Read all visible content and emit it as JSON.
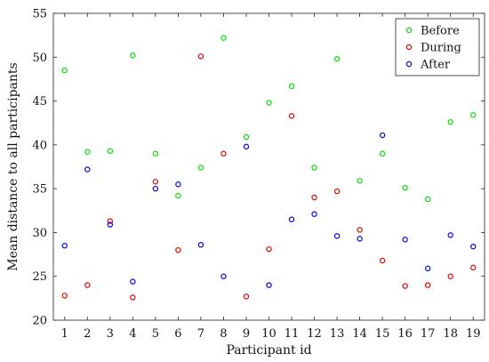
{
  "chart_data": {
    "type": "scatter",
    "title": "",
    "xlabel": "Participant id",
    "ylabel": "Mean distance to all participants",
    "x": [
      1,
      2,
      3,
      4,
      5,
      6,
      7,
      8,
      9,
      10,
      11,
      12,
      13,
      14,
      15,
      16,
      17,
      18,
      19
    ],
    "xlim": [
      0.5,
      19.5
    ],
    "ylim": [
      20,
      55
    ],
    "xticks": [
      1,
      2,
      3,
      4,
      5,
      6,
      7,
      8,
      9,
      10,
      11,
      12,
      13,
      14,
      15,
      16,
      17,
      18,
      19
    ],
    "yticks": [
      20,
      25,
      30,
      35,
      40,
      45,
      50,
      55
    ],
    "grid": false,
    "legend_position": "top-right",
    "marker": "open-circle",
    "series": [
      {
        "name": "Before",
        "color": "#00dd00",
        "values": [
          48.5,
          39.2,
          39.3,
          50.2,
          39.0,
          34.2,
          37.4,
          52.2,
          40.9,
          44.8,
          46.7,
          37.4,
          49.8,
          35.9,
          39.0,
          35.1,
          33.8,
          42.6,
          43.4
        ]
      },
      {
        "name": "During",
        "color": "#e00000",
        "values": [
          22.8,
          24.0,
          31.3,
          22.6,
          35.8,
          28.0,
          50.1,
          39.0,
          22.7,
          28.1,
          43.3,
          34.0,
          34.7,
          30.3,
          26.8,
          23.9,
          24.0,
          25.0,
          26.0
        ]
      },
      {
        "name": "After",
        "color": "#0000e0",
        "values": [
          28.5,
          37.2,
          30.9,
          24.4,
          35.0,
          35.5,
          28.6,
          25.0,
          39.8,
          24.0,
          31.5,
          32.1,
          29.6,
          29.3,
          41.1,
          29.2,
          25.9,
          29.7,
          28.4
        ]
      }
    ]
  }
}
